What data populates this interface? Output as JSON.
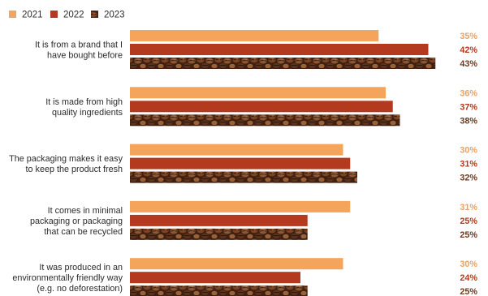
{
  "colors": {
    "series_2021": "#F4A45B",
    "series_2022": "#B33A1F",
    "series_2023_base": "#4a2614",
    "label_2021": "#E8A261",
    "label_2022": "#B33A1F",
    "label_2023": "#6B3A20",
    "text": "#2b2b2b"
  },
  "chart_data": {
    "type": "bar",
    "orientation": "horizontal",
    "legend_position": "top-left",
    "grid": false,
    "xlim": [
      0,
      50
    ],
    "value_suffix": "%",
    "series": [
      {
        "name": "2021",
        "values": [
          35,
          36,
          30,
          31,
          30
        ],
        "fill": "solid-light-orange"
      },
      {
        "name": "2022",
        "values": [
          42,
          37,
          31,
          25,
          24
        ],
        "fill": "solid-rust-red"
      },
      {
        "name": "2023",
        "values": [
          43,
          38,
          32,
          25,
          25
        ],
        "fill": "coffee-bean-photo-texture"
      }
    ],
    "categories": [
      [
        "It is from a brand that I",
        "have bought before"
      ],
      [
        "It is made from high",
        "quality ingredients"
      ],
      [
        "The packaging makes it easy",
        "to keep the product fresh"
      ],
      [
        "It comes in minimal",
        "packaging or packaging",
        "that can be recycled"
      ],
      [
        "It was produced in an",
        "environmentally friendly way",
        "(e.g. no deforestation)"
      ]
    ],
    "value_labels": [
      [
        "35%",
        "42%",
        "43%"
      ],
      [
        "36%",
        "37%",
        "38%"
      ],
      [
        "30%",
        "31%",
        "32%"
      ],
      [
        "31%",
        "25%",
        "25%"
      ],
      [
        "30%",
        "24%",
        "25%"
      ]
    ]
  }
}
